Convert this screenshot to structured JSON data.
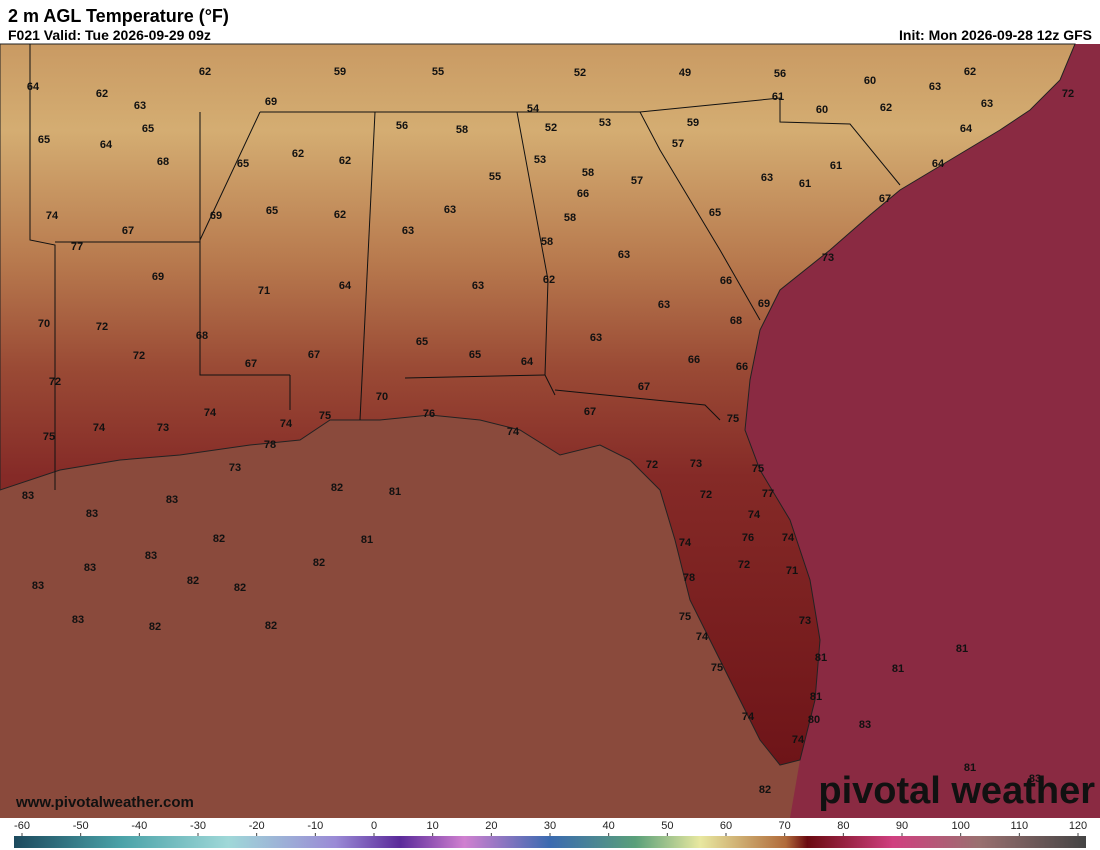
{
  "header": {
    "title": "2 m AGL Temperature (°F)",
    "valid": "F021 Valid: Tue 2026-09-29 09z",
    "init": "Init: Mon 2026-09-28 12z GFS"
  },
  "map": {
    "labels": [
      64,
      62,
      59,
      55,
      52,
      49,
      56,
      60,
      62,
      72,
      62,
      63,
      69,
      54,
      61,
      60,
      62,
      63,
      63,
      65,
      65,
      64,
      56,
      58,
      52,
      53,
      59,
      64,
      68,
      65,
      62,
      62,
      53,
      58,
      57,
      55,
      57,
      61,
      64,
      66,
      63,
      61,
      67,
      74,
      69,
      65,
      62,
      63,
      58,
      65,
      67,
      63,
      58,
      73,
      77,
      69,
      71,
      64,
      63,
      62,
      63,
      66,
      63,
      69,
      70,
      72,
      68,
      68,
      65,
      65,
      63,
      72,
      67,
      67,
      64,
      66,
      66,
      72,
      67,
      70,
      74,
      74,
      75,
      76,
      67,
      75,
      75,
      74,
      73,
      78,
      74,
      73,
      72,
      73,
      75,
      83,
      83,
      82,
      81,
      72,
      77,
      83,
      74,
      82,
      81,
      76,
      74,
      83,
      83,
      74,
      82,
      72,
      71,
      83,
      82,
      82,
      78,
      83,
      82,
      82,
      75,
      73,
      74,
      81,
      81,
      81,
      75,
      81,
      74,
      80,
      83,
      74,
      81,
      83,
      82
    ]
  },
  "colorbar": {
    "ticks": [
      -60,
      -50,
      -40,
      -30,
      -20,
      -10,
      0,
      10,
      20,
      30,
      40,
      50,
      60,
      70,
      80,
      90,
      100,
      110,
      120
    ]
  },
  "footer": {
    "website": "www.pivotalweather.com",
    "logo": "pivotal weather"
  }
}
